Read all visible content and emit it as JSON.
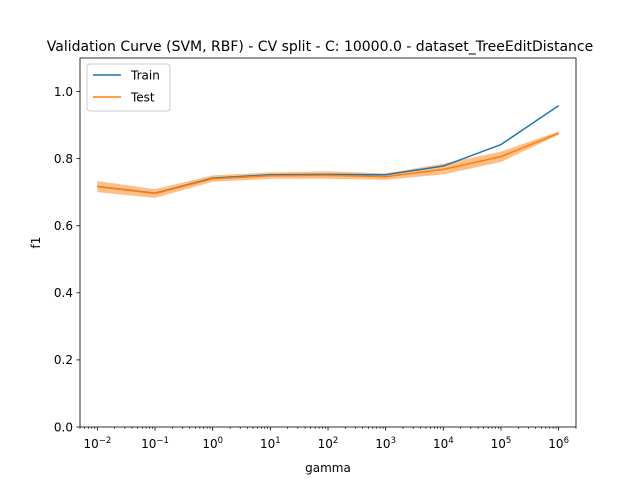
{
  "chart_data": {
    "type": "line",
    "title": "Validation Curve (SVM, RBF) - CV split - C: 10000.0 - dataset_TreeEditDistance",
    "xlabel": "gamma",
    "ylabel": "f1",
    "xscale": "log",
    "xlim": [
      0.005,
      2000000
    ],
    "ylim": [
      0.0,
      1.1
    ],
    "x": [
      0.01,
      0.1,
      1,
      10,
      100,
      1000,
      10000,
      100000,
      1000000
    ],
    "x_tick_labels": [
      {
        "base": "10",
        "exp": "−2"
      },
      {
        "base": "10",
        "exp": "−1"
      },
      {
        "base": "10",
        "exp": "0"
      },
      {
        "base": "10",
        "exp": "1"
      },
      {
        "base": "10",
        "exp": "2"
      },
      {
        "base": "10",
        "exp": "3"
      },
      {
        "base": "10",
        "exp": "4"
      },
      {
        "base": "10",
        "exp": "5"
      },
      {
        "base": "10",
        "exp": "6"
      }
    ],
    "y_ticks": [
      0.0,
      0.2,
      0.4,
      0.6,
      0.8,
      1.0
    ],
    "y_tick_labels": [
      "0.0",
      "0.2",
      "0.4",
      "0.6",
      "0.8",
      "1.0"
    ],
    "grid": false,
    "legend_position": "top-left",
    "series": [
      {
        "name": "Train",
        "color": "#1f77b4",
        "values": [
          0.717,
          0.697,
          0.742,
          0.752,
          0.753,
          0.752,
          0.778,
          0.842,
          0.958
        ],
        "band_lower": [
          0.716,
          0.696,
          0.741,
          0.751,
          0.752,
          0.751,
          0.777,
          0.841,
          0.957
        ],
        "band_upper": [
          0.718,
          0.698,
          0.743,
          0.753,
          0.754,
          0.753,
          0.779,
          0.843,
          0.959
        ]
      },
      {
        "name": "Test",
        "color": "#ff7f0e",
        "values": [
          0.717,
          0.696,
          0.74,
          0.749,
          0.75,
          0.746,
          0.768,
          0.806,
          0.876
        ],
        "band_lower": [
          0.7,
          0.683,
          0.731,
          0.74,
          0.74,
          0.737,
          0.753,
          0.79,
          0.871
        ],
        "band_upper": [
          0.733,
          0.709,
          0.75,
          0.759,
          0.762,
          0.756,
          0.785,
          0.821,
          0.881
        ]
      }
    ]
  }
}
